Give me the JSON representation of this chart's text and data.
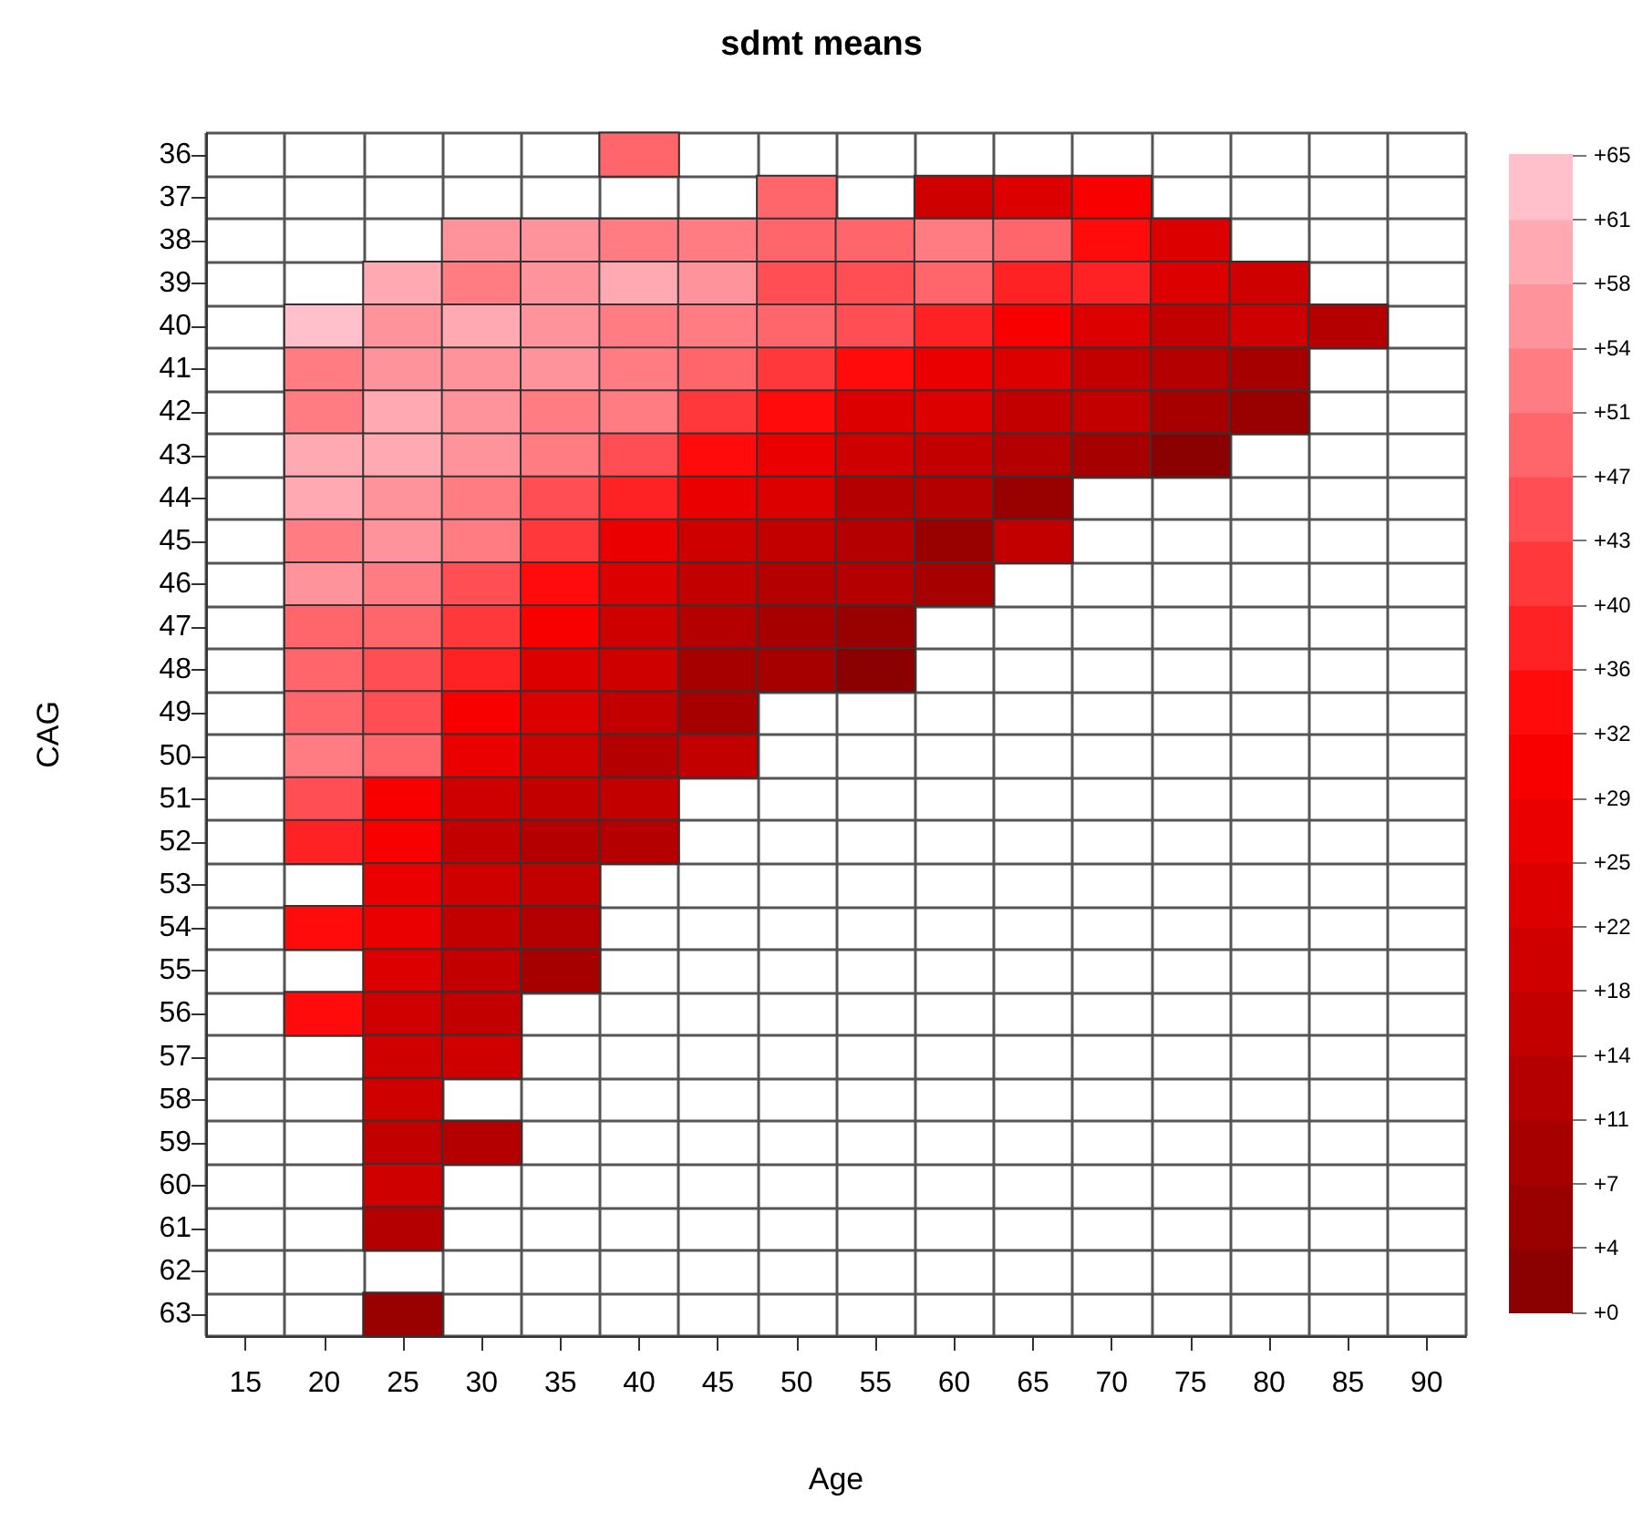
{
  "chart_data": {
    "type": "heatmap",
    "title": "sdmt means",
    "xlabel": "Age",
    "ylabel": "CAG",
    "categories": [
      "15",
      "20",
      "25",
      "30",
      "35",
      "40",
      "45",
      "50",
      "55",
      "60",
      "65",
      "70",
      "75",
      "80",
      "85",
      "90"
    ],
    "y_categories": [
      "36",
      "37",
      "38",
      "39",
      "40",
      "41",
      "42",
      "43",
      "44",
      "45",
      "46",
      "47",
      "48",
      "49",
      "50",
      "51",
      "52",
      "53",
      "54",
      "55",
      "56",
      "57",
      "58",
      "59",
      "60",
      "61",
      "62",
      "63"
    ],
    "cells": [
      [
        null,
        null,
        null,
        null,
        null,
        49,
        null,
        null,
        null,
        null,
        null,
        null,
        null,
        null,
        null,
        null
      ],
      [
        null,
        null,
        null,
        null,
        null,
        null,
        null,
        49,
        null,
        20,
        24,
        31,
        null,
        null,
        null,
        null
      ],
      [
        null,
        null,
        null,
        56,
        56,
        52,
        52,
        49,
        49,
        52,
        49,
        34,
        24,
        null,
        null,
        null
      ],
      [
        null,
        null,
        60,
        52,
        56,
        60,
        56,
        45,
        45,
        49,
        38,
        38,
        24,
        20,
        null,
        null
      ],
      [
        null,
        63,
        56,
        60,
        56,
        52,
        52,
        49,
        45,
        38,
        31,
        24,
        16,
        20,
        13,
        null
      ],
      [
        null,
        52,
        56,
        56,
        56,
        52,
        49,
        42,
        34,
        27,
        24,
        16,
        13,
        9,
        null,
        null
      ],
      [
        null,
        52,
        60,
        56,
        52,
        52,
        42,
        34,
        24,
        24,
        16,
        16,
        9,
        5,
        null,
        null
      ],
      [
        null,
        60,
        60,
        56,
        52,
        45,
        34,
        27,
        20,
        16,
        13,
        9,
        2,
        null,
        null,
        null
      ],
      [
        null,
        60,
        56,
        52,
        45,
        38,
        27,
        24,
        13,
        13,
        5,
        null,
        null,
        null,
        null,
        null
      ],
      [
        null,
        52,
        56,
        52,
        42,
        27,
        20,
        16,
        13,
        5,
        16,
        null,
        null,
        null,
        null,
        null
      ],
      [
        null,
        56,
        52,
        45,
        34,
        24,
        16,
        13,
        13,
        9,
        null,
        null,
        null,
        null,
        null,
        null
      ],
      [
        null,
        49,
        49,
        42,
        31,
        20,
        13,
        9,
        5,
        null,
        null,
        null,
        null,
        null,
        null,
        null
      ],
      [
        null,
        49,
        45,
        38,
        24,
        20,
        9,
        9,
        2,
        null,
        null,
        null,
        null,
        null,
        null,
        null
      ],
      [
        null,
        49,
        45,
        31,
        24,
        16,
        9,
        null,
        null,
        null,
        null,
        null,
        null,
        null,
        null,
        null
      ],
      [
        null,
        52,
        49,
        27,
        20,
        13,
        16,
        null,
        null,
        null,
        null,
        null,
        null,
        null,
        null,
        null
      ],
      [
        null,
        45,
        31,
        20,
        16,
        16,
        null,
        null,
        null,
        null,
        null,
        null,
        null,
        null,
        null,
        null
      ],
      [
        null,
        38,
        31,
        16,
        13,
        13,
        null,
        null,
        null,
        null,
        null,
        null,
        null,
        null,
        null,
        null
      ],
      [
        null,
        null,
        27,
        20,
        16,
        null,
        null,
        null,
        null,
        null,
        null,
        null,
        null,
        null,
        null,
        null
      ],
      [
        null,
        34,
        27,
        16,
        13,
        null,
        null,
        null,
        null,
        null,
        null,
        null,
        null,
        null,
        null,
        null
      ],
      [
        null,
        null,
        24,
        16,
        9,
        null,
        null,
        null,
        null,
        null,
        null,
        null,
        null,
        null,
        null,
        null
      ],
      [
        null,
        34,
        20,
        16,
        null,
        null,
        null,
        null,
        null,
        null,
        null,
        null,
        null,
        null,
        null,
        null
      ],
      [
        null,
        null,
        20,
        20,
        null,
        null,
        null,
        null,
        null,
        null,
        null,
        null,
        null,
        null,
        null,
        null
      ],
      [
        null,
        null,
        20,
        null,
        null,
        null,
        null,
        null,
        null,
        null,
        null,
        null,
        null,
        null,
        null,
        null
      ],
      [
        null,
        null,
        16,
        13,
        null,
        null,
        null,
        null,
        null,
        null,
        null,
        null,
        null,
        null,
        null,
        null
      ],
      [
        null,
        null,
        20,
        null,
        null,
        null,
        null,
        null,
        null,
        null,
        null,
        null,
        null,
        null,
        null,
        null
      ],
      [
        null,
        null,
        13,
        null,
        null,
        null,
        null,
        null,
        null,
        null,
        null,
        null,
        null,
        null,
        null,
        null
      ],
      [
        null,
        null,
        null,
        null,
        null,
        null,
        null,
        null,
        null,
        null,
        null,
        null,
        null,
        null,
        null,
        null
      ],
      [
        null,
        null,
        5,
        null,
        null,
        null,
        null,
        null,
        null,
        null,
        null,
        null,
        null,
        null,
        null,
        null
      ]
    ],
    "clim": [
      0,
      65
    ],
    "cticks": [
      {
        "value": 0,
        "label": "+0"
      },
      {
        "value": 3.61,
        "label": "+4"
      },
      {
        "value": 7.22,
        "label": "+7"
      },
      {
        "value": 10.83,
        "label": "+11"
      },
      {
        "value": 14.44,
        "label": "+14"
      },
      {
        "value": 18.06,
        "label": "+18"
      },
      {
        "value": 21.67,
        "label": "+22"
      },
      {
        "value": 25.28,
        "label": "+25"
      },
      {
        "value": 28.89,
        "label": "+29"
      },
      {
        "value": 32.5,
        "label": "+32"
      },
      {
        "value": 36.11,
        "label": "+36"
      },
      {
        "value": 39.72,
        "label": "+40"
      },
      {
        "value": 43.33,
        "label": "+43"
      },
      {
        "value": 46.94,
        "label": "+47"
      },
      {
        "value": 50.56,
        "label": "+51"
      },
      {
        "value": 54.17,
        "label": "+54"
      },
      {
        "value": 57.78,
        "label": "+58"
      },
      {
        "value": 61.39,
        "label": "+61"
      },
      {
        "value": 65,
        "label": "+65"
      }
    ]
  }
}
